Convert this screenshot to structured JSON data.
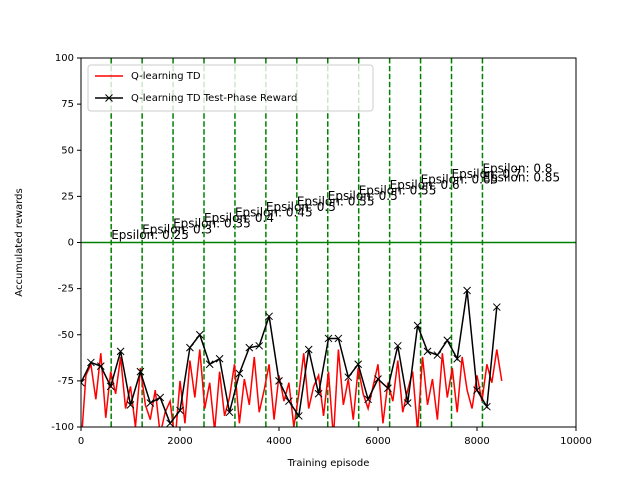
{
  "chart_data": {
    "type": "line",
    "xlabel": "Training episode",
    "ylabel": "Accumulated rewards",
    "xlim": [
      0,
      10000
    ],
    "ylim": [
      -100,
      100
    ],
    "xticks": [
      0,
      2000,
      4000,
      6000,
      8000,
      10000
    ],
    "yticks": [
      -100,
      -75,
      -50,
      -25,
      0,
      25,
      50,
      75,
      100
    ],
    "legend_position": "upper left",
    "hline": {
      "y": 0,
      "color": "#008000"
    },
    "vlines": {
      "x": [
        610,
        1235,
        1860,
        2485,
        3110,
        3735,
        4360,
        4985,
        5610,
        6235,
        6860,
        7485,
        8110
      ],
      "color": "#008000"
    },
    "annotations": [
      {
        "text": "Epsilon: 0.25",
        "x": 610,
        "y": 2
      },
      {
        "text": "Epsilon: 0.3",
        "x": 1235,
        "y": 5
      },
      {
        "text": "Epsilon: 0.35",
        "x": 1860,
        "y": 8
      },
      {
        "text": "Epsilon: 0.4",
        "x": 2485,
        "y": 11
      },
      {
        "text": "Epsilon: 0.45",
        "x": 3110,
        "y": 14
      },
      {
        "text": "Epsilon: 0.5",
        "x": 3735,
        "y": 17
      },
      {
        "text": "Epsilon: 0.55",
        "x": 4360,
        "y": 20
      },
      {
        "text": "Epsilon: 0.5",
        "x": 4985,
        "y": 23
      },
      {
        "text": "Epsilon: 0.55",
        "x": 5610,
        "y": 26
      },
      {
        "text": "Epsilon: 0.6",
        "x": 6235,
        "y": 29
      },
      {
        "text": "Epsilon: 0.65",
        "x": 6860,
        "y": 32
      },
      {
        "text": "Epsilon: 0.7",
        "x": 7485,
        "y": 35
      },
      {
        "text": "Epsilon: 0.8",
        "x": 8110,
        "y": 38
      },
      {
        "text": "Epsilon: 0.85",
        "x": 8110,
        "y": 33
      }
    ],
    "series": [
      {
        "name": "Q-learning TD",
        "color": "#ff0000",
        "marker": "none",
        "x": [
          0,
          100,
          200,
          300,
          400,
          500,
          600,
          700,
          800,
          900,
          1000,
          1100,
          1200,
          1300,
          1400,
          1500,
          1600,
          1700,
          1800,
          1900,
          2000,
          2100,
          2200,
          2300,
          2400,
          2500,
          2600,
          2700,
          2800,
          2900,
          3000,
          3100,
          3200,
          3300,
          3400,
          3500,
          3600,
          3700,
          3800,
          3900,
          4000,
          4100,
          4200,
          4300,
          4400,
          4500,
          4600,
          4700,
          4800,
          4900,
          5000,
          5100,
          5200,
          5300,
          5400,
          5500,
          5600,
          5700,
          5800,
          5900,
          6000,
          6100,
          6200,
          6300,
          6400,
          6500,
          6600,
          6700,
          6800,
          6900,
          7000,
          7100,
          7200,
          7300,
          7400,
          7500,
          7600,
          7700,
          7800,
          7900,
          8000,
          8100,
          8200,
          8300,
          8400,
          8500
        ],
        "values": [
          -110,
          -72,
          -66,
          -85,
          -60,
          -95,
          -70,
          -82,
          -62,
          -90,
          -78,
          -100,
          -68,
          -88,
          -96,
          -80,
          -104,
          -92,
          -86,
          -108,
          -75,
          -98,
          -64,
          -84,
          -58,
          -90,
          -76,
          -102,
          -70,
          -94,
          -84,
          -66,
          -98,
          -74,
          -88,
          -62,
          -92,
          -80,
          -66,
          -96,
          -72,
          -86,
          -76,
          -100,
          -82,
          -60,
          -90,
          -78,
          -72,
          -94,
          -70,
          -106,
          -58,
          -88,
          -74,
          -96,
          -68,
          -82,
          -90,
          -78,
          -66,
          -98,
          -76,
          -86,
          -64,
          -92,
          -80,
          -70,
          -102,
          -62,
          -88,
          -74,
          -96,
          -60,
          -84,
          -68,
          -92,
          -62,
          -80,
          -90,
          -72,
          -86,
          -66,
          -76,
          -58,
          -75
        ]
      },
      {
        "name": "Q-learning TD Test-Phase Reward",
        "color": "#000000",
        "marker": "x",
        "x": [
          0,
          200,
          400,
          600,
          800,
          1000,
          1200,
          1400,
          1600,
          1800,
          2000,
          2200,
          2400,
          2600,
          2800,
          3000,
          3200,
          3400,
          3600,
          3800,
          4000,
          4200,
          4400,
          4600,
          4800,
          5000,
          5200,
          5400,
          5600,
          5800,
          6000,
          6200,
          6400,
          6600,
          6800,
          7000,
          7200,
          7400,
          7600,
          7800,
          8000,
          8200,
          8400
        ],
        "values": [
          -76,
          -65,
          -67,
          -78,
          -59,
          -88,
          -70,
          -87,
          -84,
          -98,
          -91,
          -57,
          -50,
          -66,
          -63,
          -92,
          -71,
          -57,
          -56,
          -40,
          -75,
          -86,
          -94,
          -58,
          -82,
          -52,
          -52,
          -73,
          -66,
          -85,
          -74,
          -79,
          -56,
          -87,
          -45,
          -59,
          -61,
          -53,
          -63,
          -26,
          -80,
          -89,
          -35
        ]
      }
    ]
  }
}
